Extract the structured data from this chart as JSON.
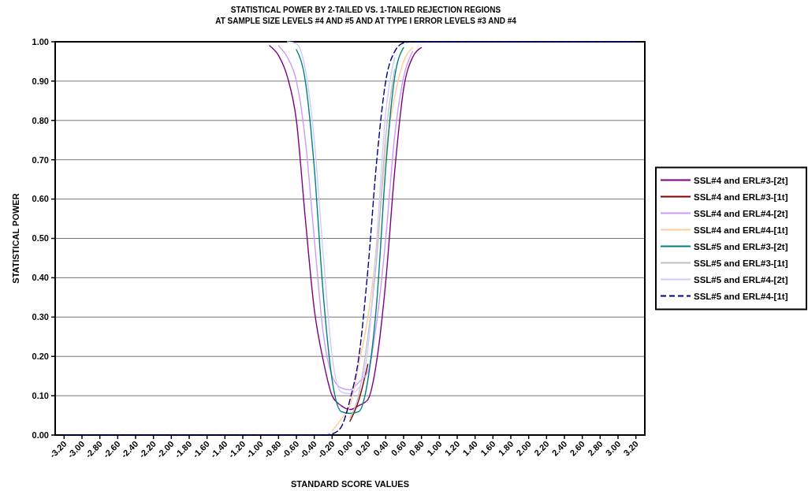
{
  "chart_data": {
    "type": "line",
    "title": "STATISTICAL POWER BY 2-TAILED VS. 1-TAILED REJECTION REGIONS\nAT SAMPLE SIZE LEVELS #4 AND #5 AND AT TYPE I ERROR LEVELS #3 AND #4",
    "xlabel": "STANDARD SCORE VALUES",
    "ylabel": "STATISTICAL POWER",
    "x": [
      -3.2,
      -1.2,
      -1.1,
      -1.0,
      -0.9,
      -0.8,
      -0.7,
      -0.6,
      -0.5,
      -0.4,
      -0.3,
      -0.2,
      -0.1,
      0,
      0.1,
      0.2,
      0.3,
      0.4,
      0.5,
      0.6,
      0.7,
      0.8,
      0.9,
      1.0,
      1.1,
      1.2,
      3.2
    ],
    "xlim": [
      -3.3,
      3.3
    ],
    "xticks": [
      {
        "value": -3.2,
        "label": "-3.20"
      },
      {
        "value": -3.0,
        "label": "-3.00"
      },
      {
        "value": -2.8,
        "label": "-2.80"
      },
      {
        "value": -2.6,
        "label": "-2.60"
      },
      {
        "value": -2.4,
        "label": "-2.40"
      },
      {
        "value": -2.2,
        "label": "-2.20"
      },
      {
        "value": -2.0,
        "label": "-2.00"
      },
      {
        "value": -1.8,
        "label": "-1.80"
      },
      {
        "value": -1.6,
        "label": "-1.60"
      },
      {
        "value": -1.4,
        "label": "-1.40"
      },
      {
        "value": -1.2,
        "label": "-1.20"
      },
      {
        "value": -1.0,
        "label": "-1.00"
      },
      {
        "value": -0.8,
        "label": "-0.80"
      },
      {
        "value": -0.6,
        "label": "-0.60"
      },
      {
        "value": -0.4,
        "label": "-0.40"
      },
      {
        "value": -0.2,
        "label": "-0.20"
      },
      {
        "value": 0,
        "label": "0.00"
      },
      {
        "value": 0.2,
        "label": "0.20"
      },
      {
        "value": 0.4,
        "label": "0.40"
      },
      {
        "value": 0.6,
        "label": "0.60"
      },
      {
        "value": 0.8,
        "label": "0.80"
      },
      {
        "value": 1.0,
        "label": "1.00"
      },
      {
        "value": 1.2,
        "label": "1.20"
      },
      {
        "value": 1.4,
        "label": "1.40"
      },
      {
        "value": 1.6,
        "label": "1.60"
      },
      {
        "value": 1.8,
        "label": "1.80"
      },
      {
        "value": 2.0,
        "label": "2.00"
      },
      {
        "value": 2.2,
        "label": "2.20"
      },
      {
        "value": 2.4,
        "label": "2.40"
      },
      {
        "value": 2.6,
        "label": "2.60"
      },
      {
        "value": 2.8,
        "label": "2.80"
      },
      {
        "value": 3.0,
        "label": "3.00"
      },
      {
        "value": 3.2,
        "label": "3.20"
      }
    ],
    "ylim": [
      0,
      1
    ],
    "yticks": [
      {
        "value": 0,
        "label": "0.00"
      },
      {
        "value": 0.1,
        "label": "0.10"
      },
      {
        "value": 0.2,
        "label": "0.20"
      },
      {
        "value": 0.3,
        "label": "0.30"
      },
      {
        "value": 0.4,
        "label": "0.40"
      },
      {
        "value": 0.5,
        "label": "0.50"
      },
      {
        "value": 0.6,
        "label": "0.60"
      },
      {
        "value": 0.7,
        "label": "0.70"
      },
      {
        "value": 0.8,
        "label": "0.80"
      },
      {
        "value": 0.9,
        "label": "0.90"
      },
      {
        "value": 1,
        "label": "1.00"
      }
    ],
    "grid": "y",
    "legend": "right",
    "marker": "none",
    "series": [
      {
        "name": "SSL#4 and ERL#3-[2t]",
        "color": "#800080",
        "values": [
          null,
          null,
          null,
          null,
          0.99,
          0.965,
          0.91,
          0.8,
          0.55,
          0.32,
          0.19,
          0.1,
          0.075,
          0.065,
          0.075,
          0.09,
          0.19,
          0.39,
          0.67,
          0.88,
          0.96,
          0.985,
          null,
          null,
          null,
          null,
          null
        ]
      },
      {
        "name": "SSL#4 and ERL#3-[1t]",
        "color": "#800000",
        "values": [
          null,
          null,
          null,
          null,
          null,
          null,
          null,
          null,
          null,
          null,
          null,
          null,
          null,
          0.035,
          0.09,
          0.18,
          null,
          null,
          null,
          null,
          null,
          null,
          null,
          null,
          null,
          null,
          null
        ]
      },
      {
        "name": "SSL#4 and ERL#4-[2t]",
        "color": "#cc99ff",
        "values": [
          null,
          null,
          null,
          null,
          null,
          0.99,
          0.96,
          0.9,
          0.75,
          0.5,
          0.26,
          0.15,
          0.12,
          0.115,
          0.135,
          0.16,
          0.29,
          0.5,
          0.76,
          0.91,
          0.975,
          null,
          null,
          null,
          null,
          null,
          null
        ]
      },
      {
        "name": "SSL#4 and ERL#4-[1t]",
        "color": "#ffcc99",
        "values": [
          null,
          null,
          null,
          null,
          null,
          null,
          null,
          null,
          null,
          null,
          null,
          0.01,
          0.04,
          0.075,
          0.18,
          0.3,
          0.48,
          0.72,
          0.86,
          0.95,
          0.985,
          null,
          null,
          null,
          null,
          null,
          null
        ]
      },
      {
        "name": "SSL#5 and ERL#3-[2t]",
        "color": "#008080",
        "values": [
          null,
          null,
          null,
          null,
          null,
          null,
          null,
          0.98,
          0.9,
          0.68,
          0.36,
          0.14,
          0.06,
          0.055,
          0.06,
          0.14,
          0.34,
          0.68,
          0.91,
          0.985,
          null,
          null,
          null,
          null,
          null,
          null,
          null
        ]
      },
      {
        "name": "SSL#5 and ERL#3-[1t]",
        "color": "#c0c0c0",
        "values": [
          null,
          null,
          null,
          null,
          null,
          null,
          null,
          null,
          null,
          null,
          null,
          null,
          null,
          0.045,
          0.105,
          0.25,
          0.45,
          0.76,
          0.93,
          null,
          null,
          null,
          null,
          null,
          null,
          null,
          null
        ]
      },
      {
        "name": "SSL#5 and ERL#4-[2t]",
        "color": "#ccccff",
        "values": [
          null,
          null,
          null,
          null,
          null,
          null,
          1,
          0.995,
          0.93,
          0.75,
          0.46,
          0.2,
          0.11,
          0.105,
          0.12,
          0.22,
          0.5,
          0.82,
          0.96,
          null,
          null,
          null,
          null,
          null,
          null,
          null,
          null
        ]
      },
      {
        "name": "SSL#5 and ERL#4-[1t]",
        "color": "#000080",
        "line_style": "dashed",
        "values": [
          0,
          0,
          0,
          0,
          0,
          0,
          0,
          0,
          0,
          0,
          0,
          0.003,
          0.02,
          0.09,
          0.2,
          0.42,
          0.7,
          0.9,
          0.975,
          0.997,
          1,
          1,
          1,
          1,
          1,
          1,
          1
        ]
      }
    ]
  }
}
